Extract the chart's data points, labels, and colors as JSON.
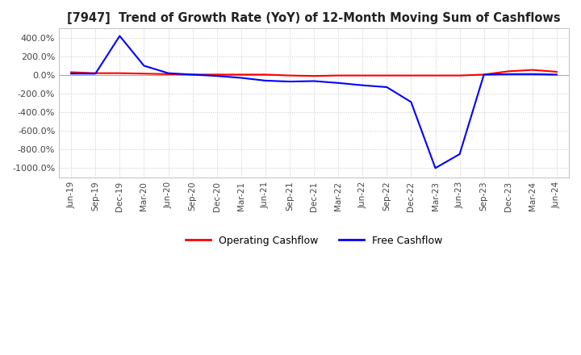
{
  "title": "[7947]  Trend of Growth Rate (YoY) of 12-Month Moving Sum of Cashflows",
  "ylim": [
    -1100,
    500
  ],
  "yticks": [
    400,
    200,
    0,
    -200,
    -400,
    -600,
    -800,
    -1000
  ],
  "background_color": "#ffffff",
  "grid_color": "#c8c8c8",
  "operating_color": "#ff0000",
  "free_color": "#0000ff",
  "legend_labels": [
    "Operating Cashflow",
    "Free Cashflow"
  ],
  "dates": [
    "Jun-19",
    "Sep-19",
    "Dec-19",
    "Mar-20",
    "Jun-20",
    "Sep-20",
    "Dec-20",
    "Mar-21",
    "Jun-21",
    "Sep-21",
    "Dec-21",
    "Mar-22",
    "Jun-22",
    "Sep-22",
    "Dec-22",
    "Mar-23",
    "Jun-23",
    "Sep-23",
    "Dec-23",
    "Mar-24",
    "Jun-24"
  ],
  "operating_cashflow": [
    30,
    20,
    20,
    15,
    10,
    5,
    5,
    5,
    5,
    -5,
    -10,
    -5,
    -5,
    -5,
    -5,
    -5,
    -5,
    5,
    40,
    55,
    35
  ],
  "free_cashflow": [
    15,
    15,
    420,
    100,
    20,
    5,
    -10,
    -30,
    -60,
    -70,
    -65,
    -85,
    -110,
    -130,
    -290,
    -1000,
    -850,
    5,
    10,
    10,
    5
  ]
}
